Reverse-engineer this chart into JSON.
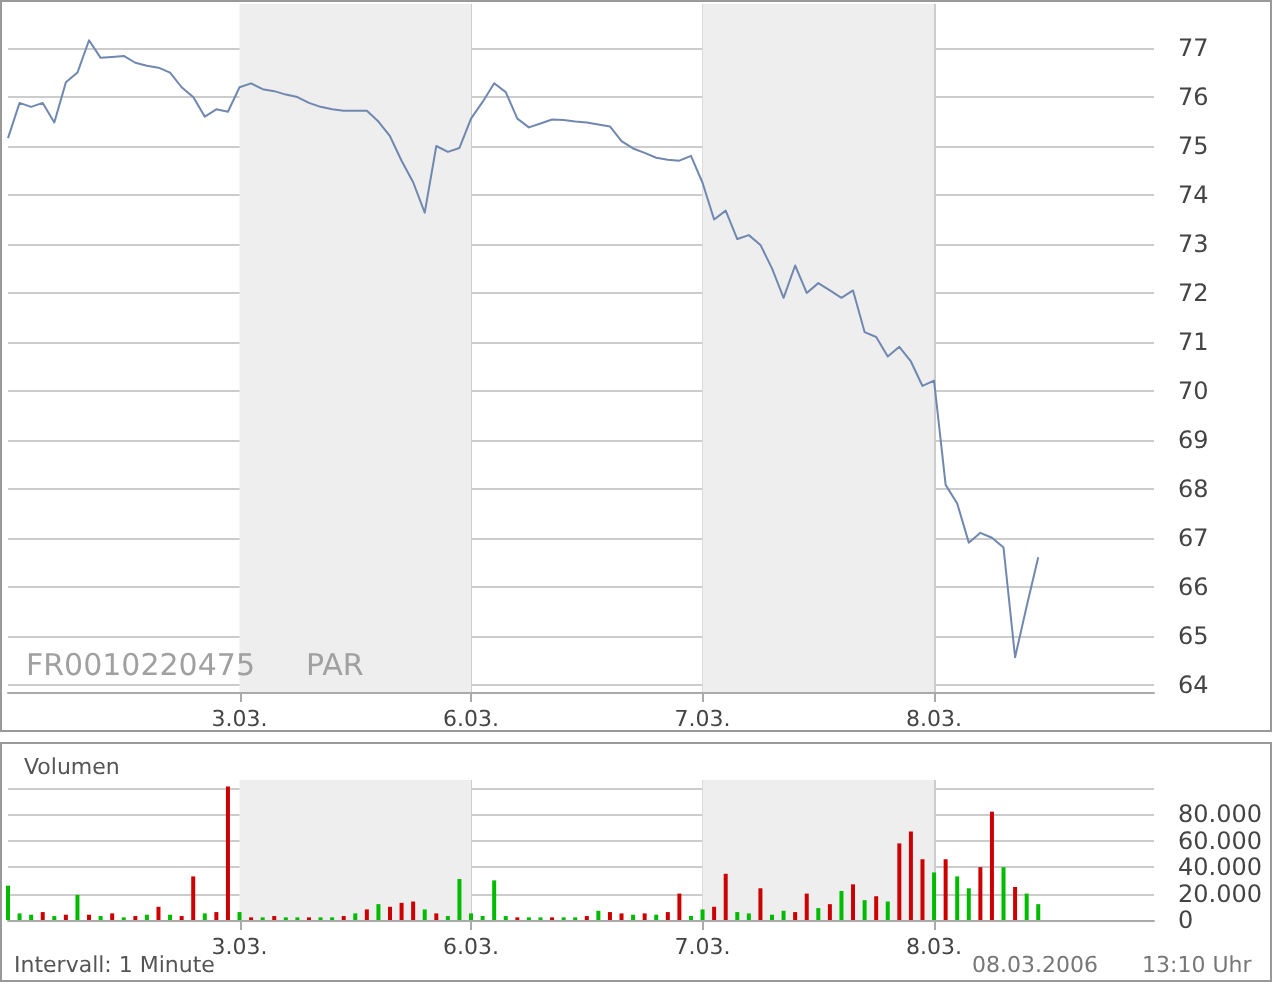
{
  "chart_data": [
    {
      "type": "line",
      "color": "#7088b0",
      "marker": "none",
      "line_style": "solid",
      "grid": true,
      "annotations": [
        "FR0010220475",
        "PAR"
      ],
      "categories": [
        null,
        null,
        null,
        null,
        null,
        null,
        null,
        null,
        null,
        null,
        null,
        null,
        null,
        null,
        null,
        null,
        null,
        null,
        null,
        null,
        "3.03.",
        null,
        null,
        null,
        null,
        null,
        null,
        null,
        null,
        null,
        null,
        null,
        null,
        null,
        null,
        null,
        null,
        null,
        null,
        null,
        "6.03.",
        null,
        null,
        null,
        null,
        null,
        null,
        null,
        null,
        null,
        null,
        null,
        null,
        null,
        null,
        null,
        null,
        null,
        null,
        null,
        "7.03.",
        null,
        null,
        null,
        null,
        null,
        null,
        null,
        null,
        null,
        null,
        null,
        null,
        null,
        null,
        null,
        null,
        null,
        null,
        null,
        "8.03.",
        null,
        null,
        null,
        null,
        null,
        null,
        null,
        null,
        null,
        null,
        null,
        null,
        null,
        null,
        null,
        null,
        null,
        null,
        null
      ],
      "ylim": [
        63.85,
        77.9
      ],
      "yticks": [
        64,
        65,
        66,
        67,
        68,
        69,
        70,
        71,
        72,
        73,
        74,
        75,
        76,
        77
      ],
      "bands": [
        {
          "axis": "x",
          "from": "3.03.",
          "to": "6.03.",
          "color": "#eeeeee"
        },
        {
          "axis": "x",
          "from": "7.03.",
          "to": "8.03.",
          "color": "#eeeeee"
        }
      ],
      "values": [
        75.16,
        75.88,
        75.8,
        75.88,
        75.48,
        76.3,
        76.5,
        77.16,
        76.8,
        76.82,
        76.84,
        76.7,
        76.64,
        76.6,
        76.5,
        76.2,
        76.0,
        75.6,
        75.75,
        75.7,
        76.2,
        76.28,
        76.16,
        76.12,
        76.05,
        76.0,
        75.88,
        75.8,
        75.75,
        75.72,
        75.72,
        75.72,
        75.5,
        75.2,
        74.7,
        74.26,
        73.64,
        75.0,
        74.88,
        74.96,
        75.56,
        75.9,
        76.28,
        76.1,
        75.56,
        75.38,
        75.46,
        75.54,
        75.53,
        75.5,
        75.48,
        75.44,
        75.4,
        75.1,
        74.95,
        74.86,
        74.76,
        74.72,
        74.7,
        74.8,
        74.25,
        73.5,
        73.68,
        73.1,
        73.18,
        72.98,
        72.5,
        71.9,
        72.56,
        72.0,
        72.2,
        72.05,
        71.9,
        72.05,
        71.2,
        71.1,
        70.7,
        70.9,
        70.6,
        70.1,
        70.21,
        68.08,
        67.7,
        66.9,
        67.1,
        67.0,
        66.8,
        64.56,
        65.6,
        66.6,
        null,
        null,
        null,
        null,
        null,
        null,
        null,
        null,
        null,
        null
      ]
    },
    {
      "type": "bar",
      "title": "Volumen",
      "grid": true,
      "annotations": [
        "Intervall: 1 Minute",
        "08.03.2006",
        "13:10 Uhr"
      ],
      "categories": [
        null,
        null,
        null,
        null,
        null,
        null,
        null,
        null,
        null,
        null,
        null,
        null,
        null,
        null,
        null,
        null,
        null,
        null,
        null,
        null,
        "3.03.",
        null,
        null,
        null,
        null,
        null,
        null,
        null,
        null,
        null,
        null,
        null,
        null,
        null,
        null,
        null,
        null,
        null,
        null,
        null,
        "6.03.",
        null,
        null,
        null,
        null,
        null,
        null,
        null,
        null,
        null,
        null,
        null,
        null,
        null,
        null,
        null,
        null,
        null,
        null,
        null,
        "7.03.",
        null,
        null,
        null,
        null,
        null,
        null,
        null,
        null,
        null,
        null,
        null,
        null,
        null,
        null,
        null,
        null,
        null,
        null,
        null,
        "8.03.",
        null,
        null,
        null,
        null,
        null,
        null,
        null,
        null,
        null,
        null,
        null,
        null,
        null,
        null,
        null,
        null,
        null,
        null,
        null
      ],
      "ylim": [
        0,
        106000
      ],
      "yticks": [
        0,
        {
          "value": 20000,
          "label": "20.000"
        },
        {
          "value": 40000,
          "label": "40.000"
        },
        {
          "value": 60000,
          "label": "60.000"
        },
        {
          "value": 80000,
          "label": "80.000"
        },
        {
          "value": 100000,
          "label": null
        }
      ],
      "bands": [
        {
          "axis": "x",
          "from": "3.03.",
          "to": "6.03.",
          "color": "#eeeeee"
        },
        {
          "axis": "x",
          "from": "7.03.",
          "to": "8.03.",
          "color": "#eeeeee"
        }
      ],
      "values": [
        26000,
        5000,
        4000,
        6000,
        3000,
        4000,
        19000,
        4000,
        3000,
        5000,
        2000,
        3000,
        4000,
        10000,
        4000,
        3000,
        33000,
        5000,
        6000,
        101000,
        6000,
        2000,
        2000,
        3000,
        2000,
        2000,
        2000,
        2000,
        2000,
        3000,
        5000,
        8000,
        12000,
        10000,
        13000,
        14000,
        8000,
        5000,
        3000,
        31000,
        5000,
        3000,
        30000,
        3000,
        2000,
        2000,
        2000,
        2000,
        2000,
        2000,
        3000,
        7000,
        6000,
        5000,
        4000,
        5000,
        4000,
        6000,
        20000,
        3000,
        8000,
        10000,
        35000,
        6000,
        5000,
        24000,
        4000,
        7000,
        6000,
        20000,
        9000,
        12000,
        22000,
        27000,
        15000,
        18000,
        14000,
        58000,
        67000,
        46000,
        36000,
        46000,
        33000,
        24000,
        40000,
        82000,
        40000,
        25000,
        20000,
        12000,
        null,
        null,
        null,
        null,
        null,
        null,
        null,
        null,
        null,
        null
      ],
      "colors": [
        "#00bb00",
        "#00bb00",
        "#00bb00",
        "#cc0000",
        "#00bb00",
        "#cc0000",
        "#00bb00",
        "#cc0000",
        "#00bb00",
        "#cc0000",
        "#00bb00",
        "#cc0000",
        "#00bb00",
        "#cc0000",
        "#00bb00",
        "#cc0000",
        "#cc0000",
        "#00bb00",
        "#cc0000",
        "#cc0000",
        "#00bb00",
        "#cc0000",
        "#00bb00",
        "#cc0000",
        "#00bb00",
        "#00bb00",
        "#cc0000",
        "#00bb00",
        "#00bb00",
        "#cc0000",
        "#00bb00",
        "#cc0000",
        "#00bb00",
        "#cc0000",
        "#cc0000",
        "#cc0000",
        "#00bb00",
        "#cc0000",
        "#00bb00",
        "#00bb00",
        "#00bb00",
        "#00bb00",
        "#00bb00",
        "#00bb00",
        "#cc0000",
        "#00bb00",
        "#00bb00",
        "#cc0000",
        "#00bb00",
        "#00bb00",
        "#cc0000",
        "#00bb00",
        "#cc0000",
        "#cc0000",
        "#00bb00",
        "#cc0000",
        "#00bb00",
        "#cc0000",
        "#cc0000",
        "#00bb00",
        "#00bb00",
        "#cc0000",
        "#cc0000",
        "#00bb00",
        "#00bb00",
        "#cc0000",
        "#00bb00",
        "#00bb00",
        "#cc0000",
        "#cc0000",
        "#00bb00",
        "#cc0000",
        "#00bb00",
        "#cc0000",
        "#00bb00",
        "#cc0000",
        "#00bb00",
        "#cc0000",
        "#cc0000",
        "#cc0000",
        "#00bb00",
        "#cc0000",
        "#00bb00",
        "#00bb00",
        "#cc0000",
        "#cc0000",
        "#00bb00",
        "#cc0000",
        "#00bb00",
        "#00bb00",
        null,
        null,
        null,
        null,
        null,
        null,
        null,
        null,
        null,
        null
      ]
    }
  ]
}
